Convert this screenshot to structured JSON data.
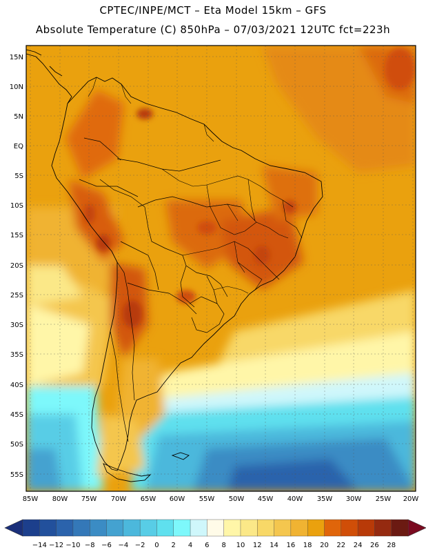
{
  "header": {
    "line1": "CPTEC/INPE/MCT  –   Eta Model 15km  –  GFS",
    "line2": "Absolute Temperature (C) 850hPa – 07/03/2021 12UTC fct=223h"
  },
  "axes": {
    "lat_labels": [
      "15N",
      "10N",
      "5N",
      "EQ",
      "5S",
      "10S",
      "15S",
      "20S",
      "25S",
      "30S",
      "35S",
      "40S",
      "45S",
      "50S",
      "55S"
    ],
    "lon_labels": [
      "85W",
      "80W",
      "75W",
      "70W",
      "65W",
      "60W",
      "55W",
      "50W",
      "45W",
      "40W",
      "35W",
      "30W",
      "25W",
      "20W"
    ]
  },
  "colorbar": {
    "labels": [
      "-14",
      "-12",
      "-10",
      "-8",
      "-6",
      "-4",
      "-2",
      "0",
      "2",
      "4",
      "6",
      "8",
      "10",
      "12",
      "14",
      "16",
      "18",
      "20",
      "22",
      "24",
      "26",
      "28"
    ],
    "colors": [
      "#1c3f8c",
      "#22509c",
      "#2b63ac",
      "#3478b8",
      "#3b8cc4",
      "#44a2d0",
      "#4cb8dc",
      "#58cde6",
      "#5fe0ee",
      "#7df8fb",
      "#cff7fb",
      "#fffbe8",
      "#fff6a8",
      "#fbe888",
      "#f8d867",
      "#f4c64e",
      "#f0b332",
      "#eaa10e",
      "#e0650a",
      "#d04e08",
      "#b83a08",
      "#952a10",
      "#6b1a12"
    ],
    "left_arrow_color": "#1a2f7a",
    "right_arrow_color": "#7a0a20"
  }
}
